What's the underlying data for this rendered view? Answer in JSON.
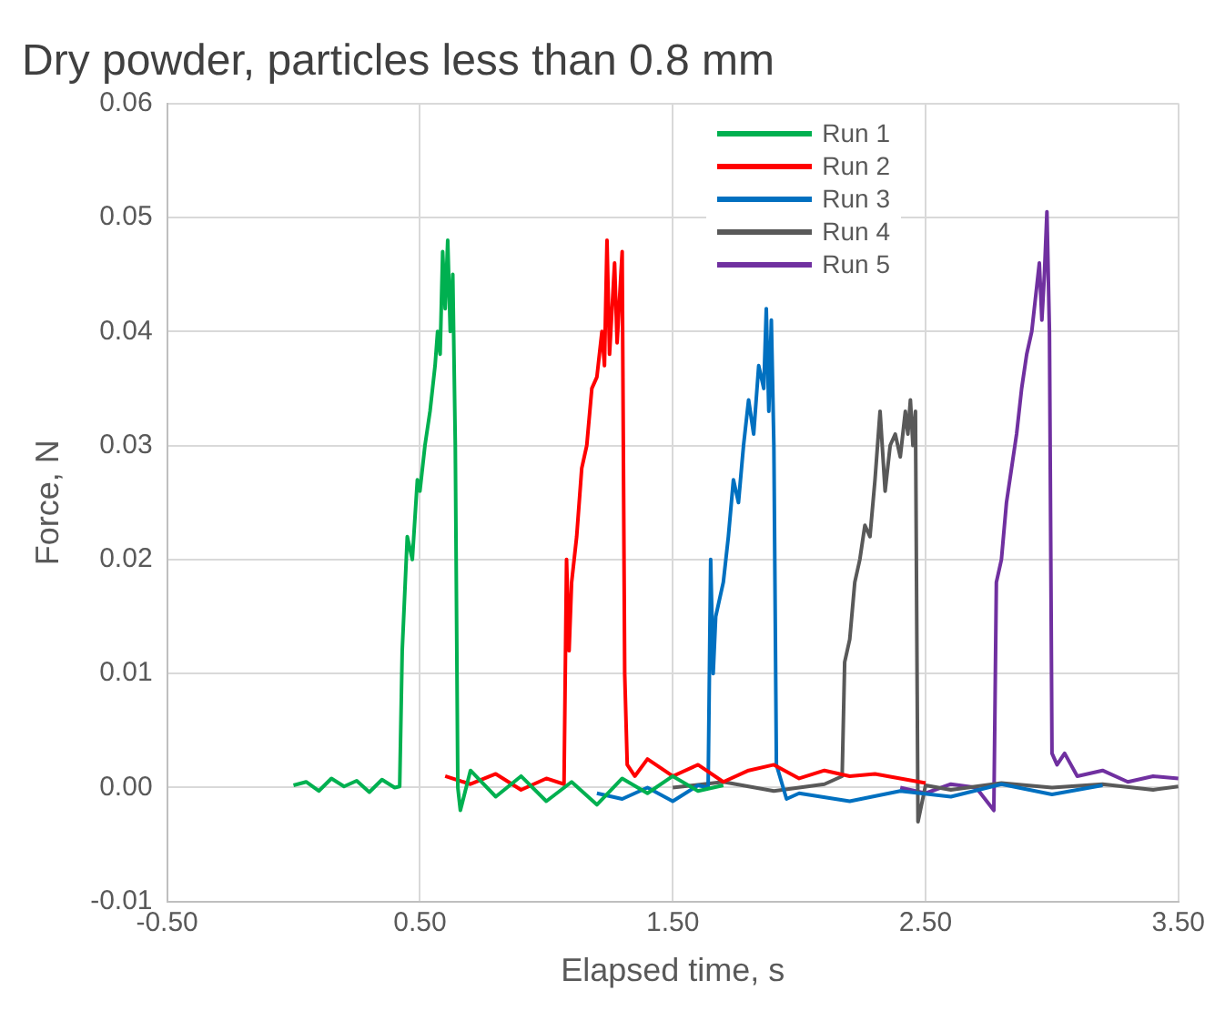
{
  "chart_data": {
    "type": "line",
    "title": "Dry powder, particles less than 0.8 mm",
    "xlabel": "Elapsed time, s",
    "ylabel": "Force, N",
    "xlim": [
      -0.5,
      3.5
    ],
    "xticks": [
      {
        "value": -0.5,
        "label": "-0.50"
      },
      {
        "value": 0.5,
        "label": "0.50"
      },
      {
        "value": 1.5,
        "label": "1.50"
      },
      {
        "value": 2.5,
        "label": "2.50"
      },
      {
        "value": 3.5,
        "label": "3.50"
      }
    ],
    "ylim": [
      -0.01,
      0.06
    ],
    "yticks": [
      -0.01,
      {
        "value": 0,
        "label": "0.00"
      },
      0.01,
      0.02,
      0.03,
      0.04,
      0.05,
      0.06
    ],
    "grid": true,
    "legend": "top right",
    "marker": "none",
    "line_style": "solid",
    "series": [
      {
        "name": "Run 1",
        "color": "#00b050",
        "x": [
          0,
          0.05,
          0.1,
          0.15,
          0.2,
          0.25,
          0.3,
          0.35,
          0.4,
          0.42,
          0.43,
          0.45,
          0.47,
          0.49,
          0.5,
          0.52,
          0.54,
          0.56,
          0.57,
          0.58,
          0.59,
          0.6,
          0.61,
          0.62,
          0.63,
          0.64,
          0.65,
          0.66,
          0.7,
          0.8,
          0.9,
          1.0,
          1.1,
          1.2,
          1.3,
          1.4,
          1.5,
          1.6,
          1.7
        ],
        "values": [
          0.0002,
          0.0005,
          -0.0003,
          0.0008,
          0.0001,
          0.0006,
          -0.0004,
          0.0007,
          0,
          0.0001,
          0.012,
          0.022,
          0.02,
          0.027,
          0.026,
          0.03,
          0.033,
          0.037,
          0.04,
          0.038,
          0.047,
          0.042,
          0.048,
          0.04,
          0.045,
          0.03,
          0,
          -0.002,
          0.0015,
          -0.0008,
          0.001,
          -0.0012,
          0.0005,
          -0.0015,
          0.0008,
          -0.0005,
          0.001,
          -0.0003,
          0.0002
        ]
      },
      {
        "name": "Run 2",
        "color": "#ff0000",
        "x": [
          0.6,
          0.7,
          0.8,
          0.9,
          1.0,
          1.07,
          1.08,
          1.09,
          1.1,
          1.12,
          1.14,
          1.16,
          1.18,
          1.2,
          1.22,
          1.23,
          1.24,
          1.25,
          1.27,
          1.28,
          1.3,
          1.31,
          1.32,
          1.35,
          1.4,
          1.5,
          1.6,
          1.7,
          1.8,
          1.9,
          2.0,
          2.1,
          2.2,
          2.3,
          2.4,
          2.5
        ],
        "values": [
          0.001,
          0.0003,
          0.0012,
          -0.0002,
          0.0008,
          0.0003,
          0.02,
          0.012,
          0.018,
          0.022,
          0.028,
          0.03,
          0.035,
          0.036,
          0.04,
          0.037,
          0.048,
          0.038,
          0.046,
          0.039,
          0.047,
          0.01,
          0.002,
          0.001,
          0.0025,
          0.001,
          0.002,
          0.0005,
          0.0015,
          0.002,
          0.0008,
          0.0015,
          0.001,
          0.0012,
          0.0008,
          0.0004
        ]
      },
      {
        "name": "Run 3",
        "color": "#0070c0",
        "x": [
          1.2,
          1.3,
          1.4,
          1.5,
          1.6,
          1.64,
          1.65,
          1.66,
          1.67,
          1.7,
          1.72,
          1.74,
          1.76,
          1.78,
          1.8,
          1.82,
          1.84,
          1.86,
          1.87,
          1.88,
          1.89,
          1.9,
          1.91,
          1.95,
          2.0,
          2.2,
          2.4,
          2.6,
          2.8,
          3.0,
          3.2
        ],
        "values": [
          -0.0005,
          -0.001,
          0,
          -0.0012,
          0.0002,
          0,
          0.02,
          0.01,
          0.015,
          0.018,
          0.022,
          0.027,
          0.025,
          0.03,
          0.034,
          0.031,
          0.037,
          0.035,
          0.042,
          0.033,
          0.041,
          0.03,
          0.002,
          -0.001,
          -0.0005,
          -0.0012,
          -0.0003,
          -0.0008,
          0.0003,
          -0.0006,
          0.0002
        ]
      },
      {
        "name": "Run 4",
        "color": "#595959",
        "x": [
          1.5,
          1.7,
          1.9,
          2.1,
          2.17,
          2.18,
          2.2,
          2.22,
          2.24,
          2.26,
          2.28,
          2.3,
          2.32,
          2.34,
          2.36,
          2.38,
          2.4,
          2.42,
          2.43,
          2.44,
          2.45,
          2.46,
          2.47,
          2.5,
          2.6,
          2.8,
          3.0,
          3.2,
          3.4,
          3.5
        ],
        "values": [
          0,
          0.0005,
          -0.0003,
          0.0003,
          0.001,
          0.011,
          0.013,
          0.018,
          0.02,
          0.023,
          0.022,
          0.027,
          0.033,
          0.026,
          0.03,
          0.031,
          0.029,
          0.033,
          0.031,
          0.034,
          0.03,
          0.033,
          -0.003,
          0.0002,
          -0.0002,
          0.0004,
          0,
          0.0003,
          -0.0002,
          0.0001
        ]
      },
      {
        "name": "Run 5",
        "color": "#7030a0",
        "x": [
          2.4,
          2.5,
          2.6,
          2.7,
          2.77,
          2.78,
          2.8,
          2.82,
          2.84,
          2.86,
          2.88,
          2.9,
          2.92,
          2.94,
          2.95,
          2.96,
          2.97,
          2.98,
          2.99,
          3.0,
          3.02,
          3.05,
          3.1,
          3.2,
          3.3,
          3.4,
          3.5
        ],
        "values": [
          0,
          -0.0005,
          0.0003,
          0,
          -0.002,
          0.018,
          0.02,
          0.025,
          0.028,
          0.031,
          0.035,
          0.038,
          0.04,
          0.044,
          0.046,
          0.041,
          0.045,
          0.0505,
          0.04,
          0.003,
          0.002,
          0.003,
          0.001,
          0.0015,
          0.0005,
          0.001,
          0.0008
        ]
      }
    ]
  }
}
